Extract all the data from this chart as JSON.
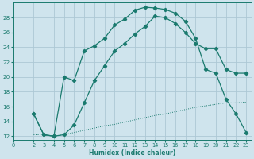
{
  "xlabel": "Humidex (Indice chaleur)",
  "bg_color": "#cfe4ed",
  "grid_color": "#adc8d5",
  "line_color": "#1a7a6e",
  "xlim": [
    0,
    23.5
  ],
  "ylim": [
    11.5,
    30
  ],
  "yticks": [
    12,
    14,
    16,
    18,
    20,
    22,
    24,
    26,
    28
  ],
  "xticks": [
    0,
    2,
    3,
    4,
    5,
    6,
    7,
    8,
    9,
    10,
    11,
    12,
    13,
    14,
    15,
    16,
    17,
    18,
    19,
    20,
    21,
    22,
    23
  ],
  "curve1_x": [
    2,
    3,
    4,
    5,
    6,
    7,
    8,
    9,
    10,
    11,
    12,
    13,
    14,
    15,
    16,
    17,
    18,
    19,
    20,
    21,
    22,
    23
  ],
  "curve1_y": [
    15.0,
    12.2,
    12.0,
    20.0,
    19.5,
    23.5,
    24.2,
    25.2,
    27.0,
    27.8,
    29.0,
    29.4,
    29.3,
    29.1,
    28.6,
    27.5,
    25.2,
    21.0,
    20.5,
    17.0,
    15.0,
    12.5
  ],
  "curve2_x": [
    2,
    3,
    4,
    5,
    6,
    7,
    8,
    9,
    10,
    11,
    12,
    13,
    14,
    15,
    16,
    17,
    18,
    19,
    20,
    21,
    22,
    23
  ],
  "curve2_y": [
    15.0,
    12.2,
    12.0,
    12.2,
    13.5,
    16.5,
    19.5,
    21.5,
    23.5,
    24.5,
    25.8,
    26.8,
    28.2,
    28.0,
    27.2,
    26.0,
    24.5,
    23.8,
    23.8,
    21.0,
    20.5,
    20.5
  ],
  "curve3_x": [
    2,
    3,
    4,
    5,
    6,
    7,
    8,
    9,
    10,
    11,
    12,
    13,
    14,
    15,
    16,
    17,
    18,
    19,
    20,
    21,
    22,
    23
  ],
  "curve3_y": [
    12.2,
    12.2,
    12.0,
    12.2,
    12.5,
    12.8,
    13.1,
    13.4,
    13.6,
    13.9,
    14.2,
    14.5,
    14.8,
    15.0,
    15.3,
    15.6,
    15.9,
    16.1,
    16.3,
    16.5,
    16.5,
    16.6
  ]
}
